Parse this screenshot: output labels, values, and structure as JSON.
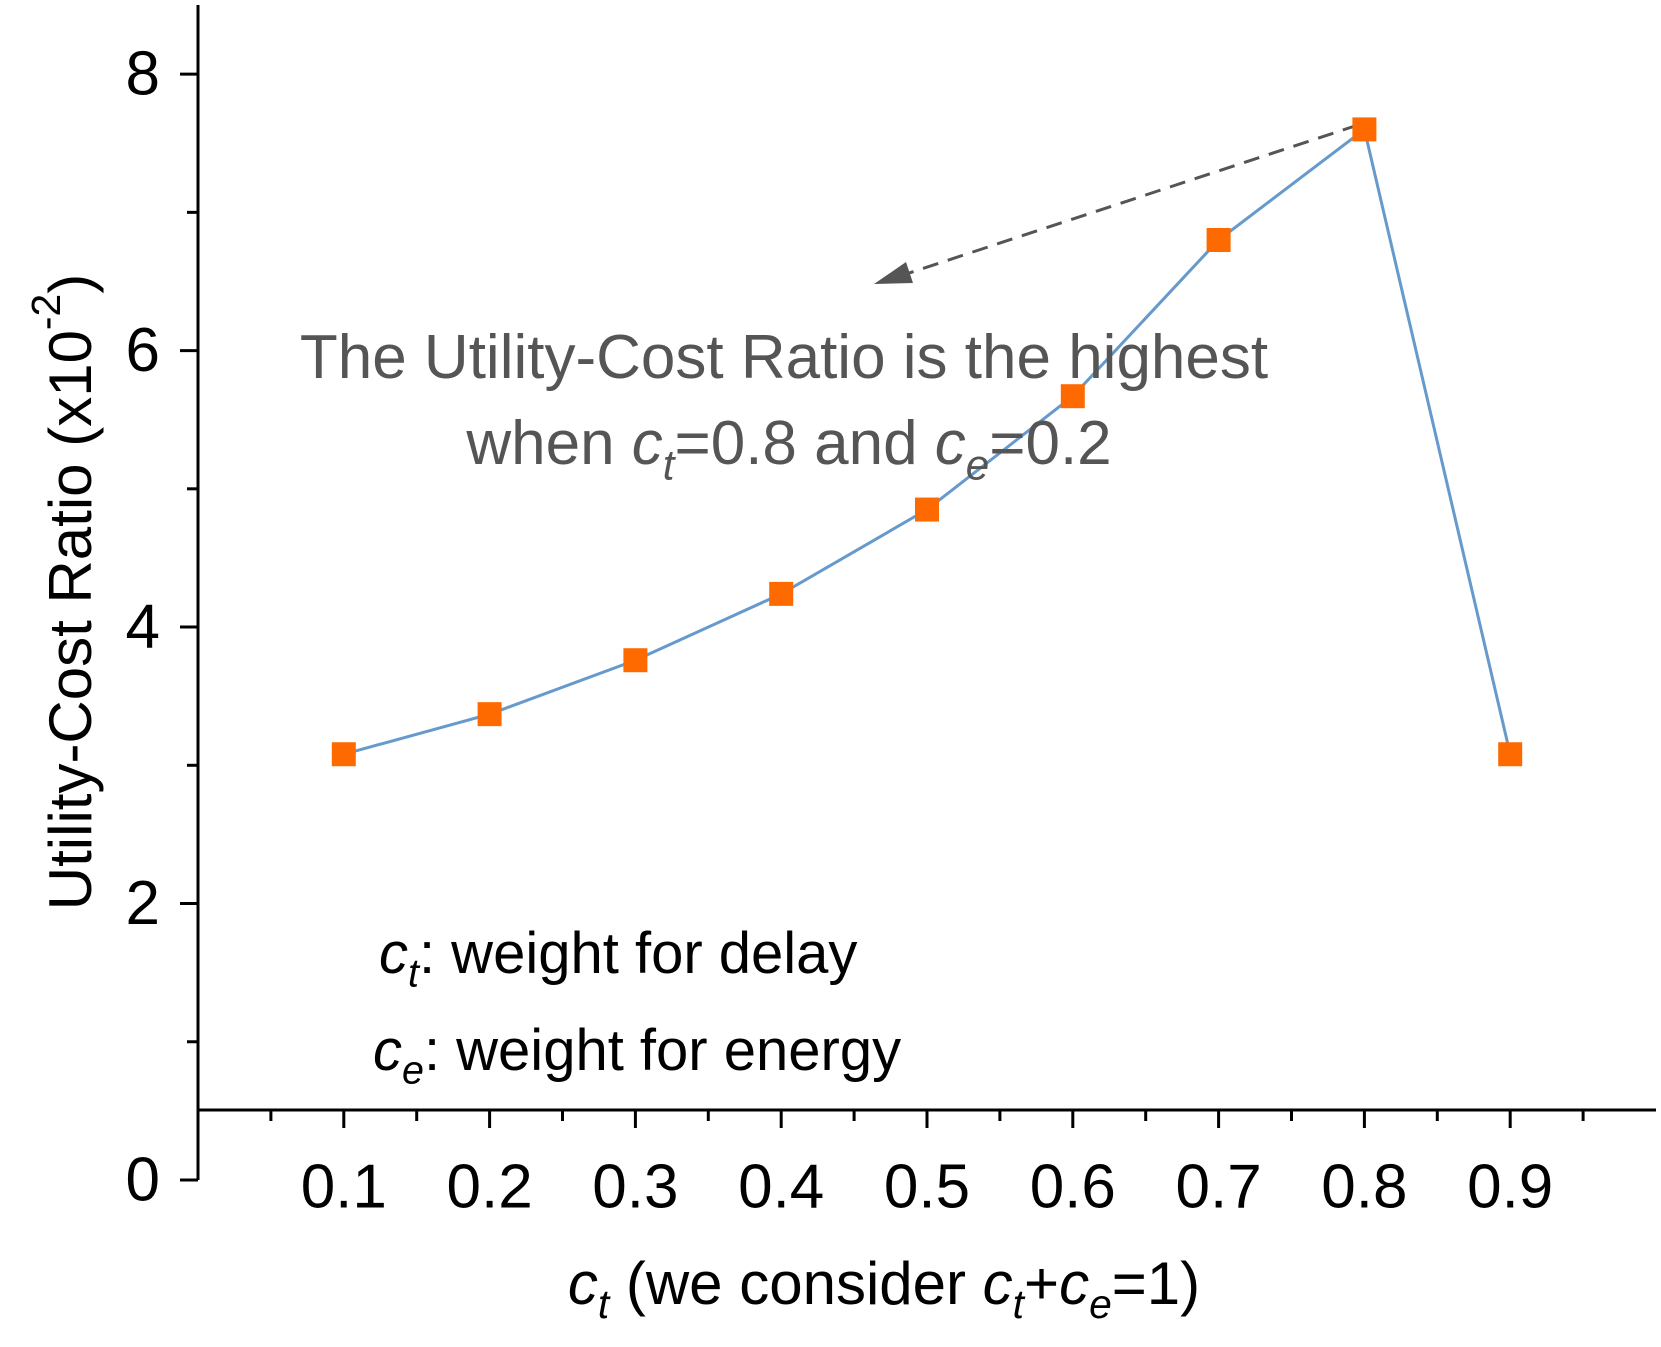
{
  "chart_data": {
    "type": "line",
    "x_label": [
      {
        "text": "c",
        "style": "italic"
      },
      {
        "text": "t",
        "style": "italic-sub"
      },
      {
        "text": " (we consider ",
        "style": "normal"
      },
      {
        "text": "c",
        "style": "italic"
      },
      {
        "text": "t",
        "style": "italic-sub"
      },
      {
        "text": "+",
        "style": "normal"
      },
      {
        "text": "c",
        "style": "italic"
      },
      {
        "text": "e",
        "style": "italic-sub"
      },
      {
        "text": "=1)",
        "style": "normal"
      }
    ],
    "y_label": [
      {
        "text": "Utility-Cost Ratio (x10",
        "style": "normal"
      },
      {
        "text": "-2",
        "style": "sup"
      },
      {
        "text": ")",
        "style": "normal"
      }
    ],
    "x": [
      0.1,
      0.2,
      0.3,
      0.4,
      0.5,
      0.6,
      0.7,
      0.8,
      0.9
    ],
    "series": [
      {
        "color": "#6699cc",
        "marker_color": "#ff6a00",
        "values": [
          3.08,
          3.37,
          3.76,
          4.24,
          4.85,
          5.67,
          6.8,
          7.6,
          3.08
        ]
      }
    ],
    "xlim": [
      0,
      1
    ],
    "xticks": [
      0.1,
      0.2,
      0.3,
      0.4,
      0.5,
      0.6,
      0.7,
      0.8,
      0.9
    ],
    "xminor_ticks": [
      0.05,
      0.15,
      0.25,
      0.35,
      0.45,
      0.55,
      0.65,
      0.75,
      0.85,
      0.95
    ],
    "ylim": [
      0,
      8.5
    ],
    "yticks": [
      0,
      2,
      4,
      6,
      8
    ],
    "yminor_ticks": [
      1,
      3,
      5,
      7
    ],
    "annotation": [
      [
        {
          "text": "The Utility-Cost Ratio is the highest",
          "style": "normal"
        }
      ],
      [
        {
          "text": "when ",
          "style": "normal"
        },
        {
          "text": "c",
          "style": "italic"
        },
        {
          "text": "t",
          "style": "italic-sub"
        },
        {
          "text": "=0.8 and ",
          "style": "normal"
        },
        {
          "text": "c",
          "style": "italic"
        },
        {
          "text": "e",
          "style": "italic-sub"
        },
        {
          "text": "=0.2",
          "style": "normal"
        }
      ]
    ],
    "notes": [
      [
        {
          "text": "c",
          "style": "italic"
        },
        {
          "text": "t",
          "style": "italic-sub"
        },
        {
          "text": ": weight for delay",
          "style": "normal"
        }
      ],
      [
        {
          "text": "c",
          "style": "italic"
        },
        {
          "text": "e",
          "style": "italic-sub"
        },
        {
          "text": ": weight for energy",
          "style": "normal"
        }
      ]
    ]
  }
}
